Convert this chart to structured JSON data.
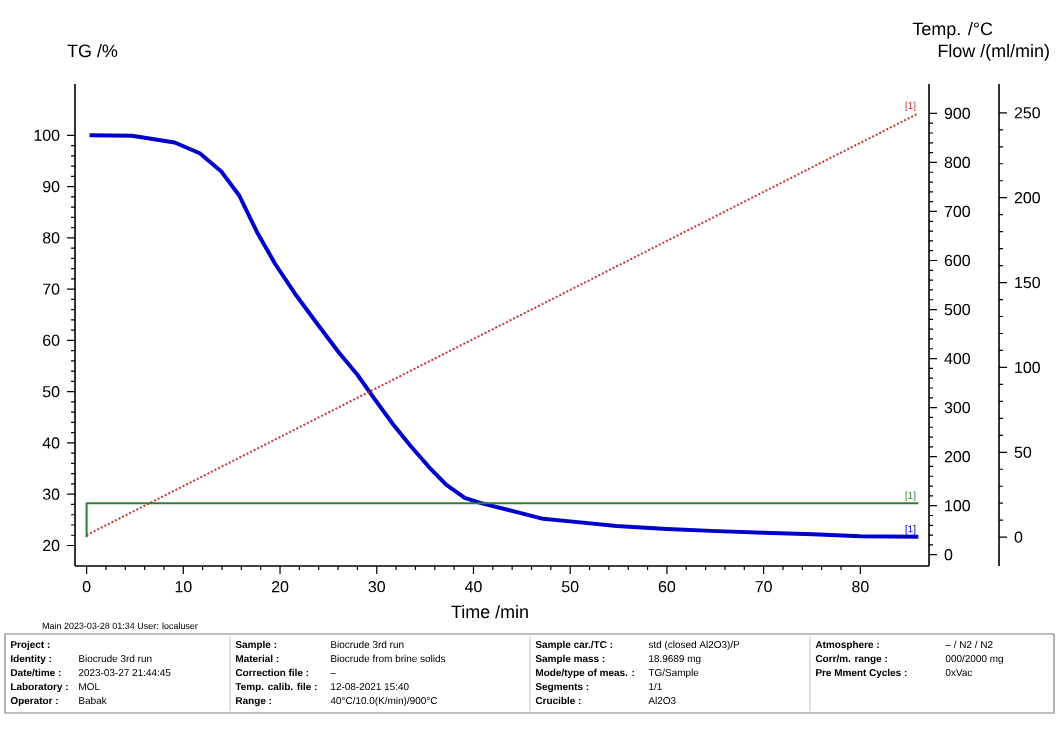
{
  "chart_data": {
    "type": "line",
    "xlabel": "Time /min",
    "ylabel": "TG /%",
    "y2label": "Temp. /°C",
    "y3label": "Flow /(ml/min)",
    "xlim": [
      -1.2,
      87.1
    ],
    "xticks": [
      0,
      10,
      20,
      30,
      40,
      50,
      60,
      70,
      80
    ],
    "ylim": [
      16,
      110
    ],
    "yticks": [
      20,
      30,
      40,
      50,
      60,
      70,
      80,
      90,
      100
    ],
    "y2lim": [
      -23,
      960
    ],
    "y2ticks": [
      0,
      100,
      200,
      300,
      400,
      500,
      600,
      700,
      800,
      900
    ],
    "y3lim": [
      -17,
      267
    ],
    "y3ticks": [
      0,
      50,
      100,
      150,
      200,
      250
    ],
    "marker": "none",
    "series": [
      {
        "color": "#0000cc",
        "line_style": "solid",
        "x": [
          0.3,
          4.7,
          9.1,
          11.7,
          13.9,
          15.8,
          17.6,
          19.5,
          21.7,
          23.9,
          26.1,
          28.0,
          29.8,
          31.7,
          33.5,
          35.4,
          37.2,
          39.1,
          40.7,
          44.5,
          47.2,
          50,
          54.8,
          60,
          65.2,
          70,
          75.1,
          80,
          86
        ],
        "values": [
          100,
          99.9,
          98.6,
          96.5,
          93.0,
          88.2,
          81.2,
          74.9,
          68.7,
          63.1,
          57.6,
          53.3,
          48.5,
          43.6,
          39.4,
          35.3,
          31.8,
          29.3,
          28.3,
          26.5,
          25.2,
          24.7,
          23.8,
          23.2,
          22.8,
          22.5,
          22.2,
          21.8,
          21.7
        ]
      },
      {
        "color": "#cc3333",
        "line_style": "dotted",
        "axis": "y2",
        "x": [
          0,
          86
        ],
        "values": [
          40,
          900
        ]
      },
      {
        "color": "#2e7d32",
        "line_style": "solid",
        "axis": "y3",
        "x": [
          0,
          0,
          86
        ],
        "values": [
          0,
          20,
          20
        ]
      }
    ],
    "annotations": [
      "[1]",
      "[1]",
      "[1]",
      "Main  2023-03-28 01:34   User: localuser",
      "Project :",
      "Sample :",
      "Biocrude 3rd run",
      "Sample car./TC :",
      "std (closed Al2O3)/P",
      "Atmosphere :",
      "– / N2 / N2",
      "Identity :",
      "Biocrude 3rd run",
      "Material :",
      "Biocrude from brine solids",
      "Sample mass :",
      "18.9689 mg",
      "Corr/m. range :",
      "000/2000 mg",
      "Date/time :",
      "2023-03-27 21:44:45",
      "Correction file :",
      "–",
      "Mode/type of meas. :",
      "TG/Sample",
      "Pre Mment Cycles :",
      "0xVac",
      "Laboratory :",
      "MOL",
      "Temp. calib. file :",
      "12-08-2021 15:40",
      "Segments :",
      "1/1",
      "Operator :",
      "Babak",
      "Range :",
      "40°C/10.0(K/min)/900°C",
      "Crucible :",
      "Al2O3"
    ]
  }
}
